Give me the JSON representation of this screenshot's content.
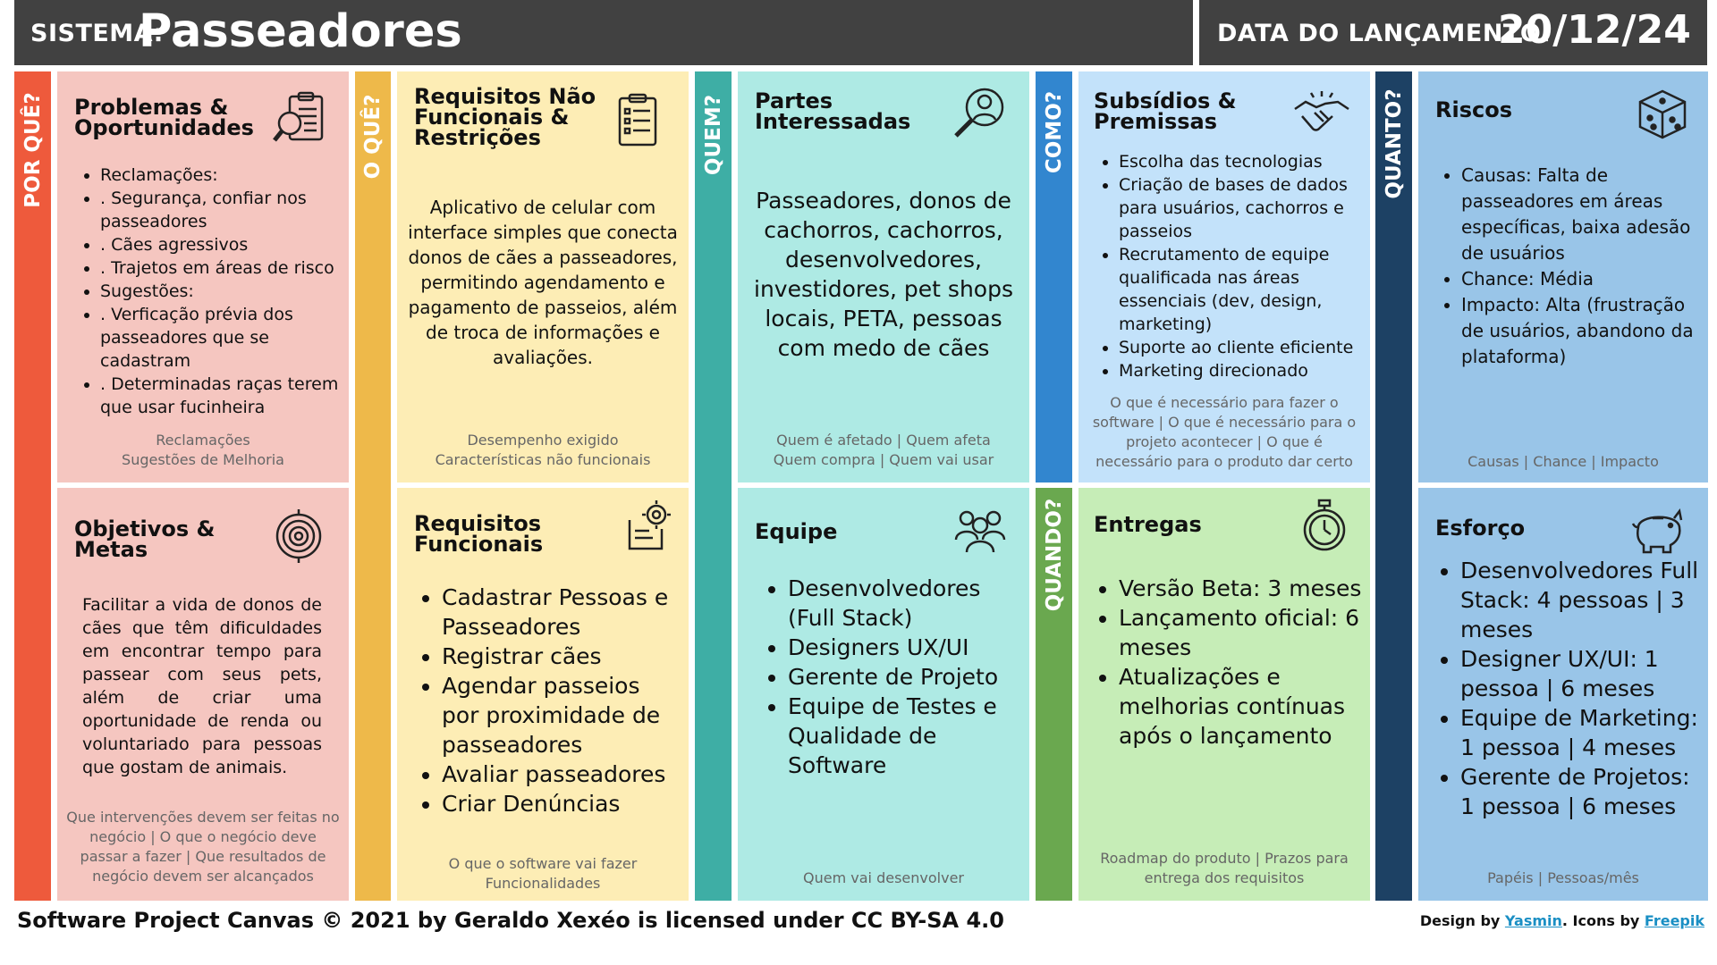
{
  "header": {
    "system_label": "SISTEMA:",
    "system_name": "Passeadores",
    "launch_label": "DATA DO LANÇAMENTO:",
    "launch_date": "20/12/24"
  },
  "strips": {
    "why": "POR QUÊ?",
    "what": "O QUÊ?",
    "who": "QUEM?",
    "how": "COMO?",
    "when": "QUANDO?",
    "how_much": "QUANTO?"
  },
  "problems": {
    "title_1": "Problemas &",
    "title_2": "Oportunidades",
    "items": [
      "Reclamações:",
      ". Segurança, confiar nos passeadores",
      ". Cães agressivos",
      ". Trajetos em áreas de risco",
      "Sugestões:",
      ". Verficação prévia dos passeadores que se cadastram",
      ".  Determinadas raças terem que usar fucinheira"
    ],
    "footer_1": "Reclamações",
    "footer_2": "Sugestões de Melhoria"
  },
  "objectives": {
    "title_1": "Objetivos &",
    "title_2": "Metas",
    "text": "Facilitar a vida de donos de cães que têm dificuldades em encontrar tempo para passear com seus pets, além de criar uma oportunidade de renda ou voluntariado para pessoas que gostam de animais.",
    "footer": "Que intervenções devem ser feitas no negócio | O que o negócio deve passar a fazer | Que resultados de negócio devem ser alcançados"
  },
  "nonfunctional": {
    "title_1": "Requisitos Não",
    "title_2": "Funcionais &",
    "title_3": "Restrições",
    "text": "Aplicativo de celular com interface simples que conecta donos de cães a passeadores, permitindo agendamento e pagamento de passeios, além de troca de informações e avaliações.",
    "footer_1": "Desempenho exigido",
    "footer_2": "Características não funcionais"
  },
  "functional": {
    "title_1": "Requisitos",
    "title_2": "Funcionais",
    "items": [
      "Cadastrar Pessoas e Passeadores",
      "Registrar cães",
      "Agendar passeios por proximidade de passeadores",
      "Avaliar passeadores",
      "Criar Denúncias"
    ],
    "footer_1": "O que o software vai fazer",
    "footer_2": "Funcionalidades"
  },
  "stakeholders": {
    "title_1": "Partes",
    "title_2": "Interessadas",
    "text": "Passeadores, donos de cachorros, cachorros, desenvolvedores, investidores, pet shops locais, PETA, pessoas com medo de cães",
    "footer_1": "Quem é afetado | Quem afeta",
    "footer_2": "Quem compra | Quem vai usar"
  },
  "team": {
    "title": "Equipe",
    "items": [
      "Desenvolvedores (Full Stack)",
      "Designers UX/UI",
      "Gerente de Projeto",
      "Equipe de Testes e Qualidade de Software"
    ],
    "footer": "Quem vai desenvolver"
  },
  "assumptions": {
    "title_1": "Subsídios &",
    "title_2": "Premissas",
    "items": [
      "Escolha das tecnologias",
      "Criação de bases de dados para usuários, cachorros e passeios",
      "Recrutamento de equipe qualificada nas áreas essenciais (dev, design, marketing)",
      "Suporte ao cliente eficiente",
      "Marketing direcionado"
    ],
    "footer": "O que é necessário para fazer o software | O que é necessário para o projeto acontecer | O que é necessário para o produto dar certo"
  },
  "deliveries": {
    "title": "Entregas",
    "items": [
      "Versão Beta: 3 meses",
      "Lançamento oficial: 6 meses",
      "Atualizações e melhorias contínuas após o lançamento"
    ],
    "footer": "Roadmap do produto | Prazos para entrega dos requisitos"
  },
  "risks": {
    "title": "Riscos",
    "items": [
      "Causas: Falta de passeadores em áreas específicas, baixa adesão de usuários",
      "Chance: Média",
      "Impacto: Alta (frustração de usuários, abandono da plataforma)"
    ],
    "footer": "Causas | Chance | Impacto"
  },
  "effort": {
    "title": "Esforço",
    "items": [
      "Desenvolvedores Full Stack: 4 pessoas | 3 meses",
      "Designer UX/UI: 1 pessoa | 6 meses",
      "Equipe de Marketing: 1 pessoa | 4 meses",
      "Gerente de Projetos: 1 pessoa | 6 meses"
    ],
    "footer": "Papéis | Pessoas/mês"
  },
  "footer": {
    "license": "Software Project Canvas © 2021 by Geraldo Xexéo is licensed under CC BY-SA 4.0",
    "design_by": "Design by",
    "designer": "Yasmin",
    "icons_by": ". Icons by",
    "icons_source": "Freepik"
  },
  "colors": {
    "header": "#414141",
    "why_strip": "#ee5a3c",
    "why_card": "#f5c6c0",
    "what_strip": "#eeb94a",
    "what_card": "#fdedb5",
    "who_strip": "#3eaea5",
    "who_card": "#aeeae4",
    "how_strip": "#3286cf",
    "how_card": "#c3e2fa",
    "when_strip": "#6aa84f",
    "when_card": "#c6edb7",
    "howmuch_strip": "#1d4164",
    "howmuch_card": "#99c5e8"
  }
}
